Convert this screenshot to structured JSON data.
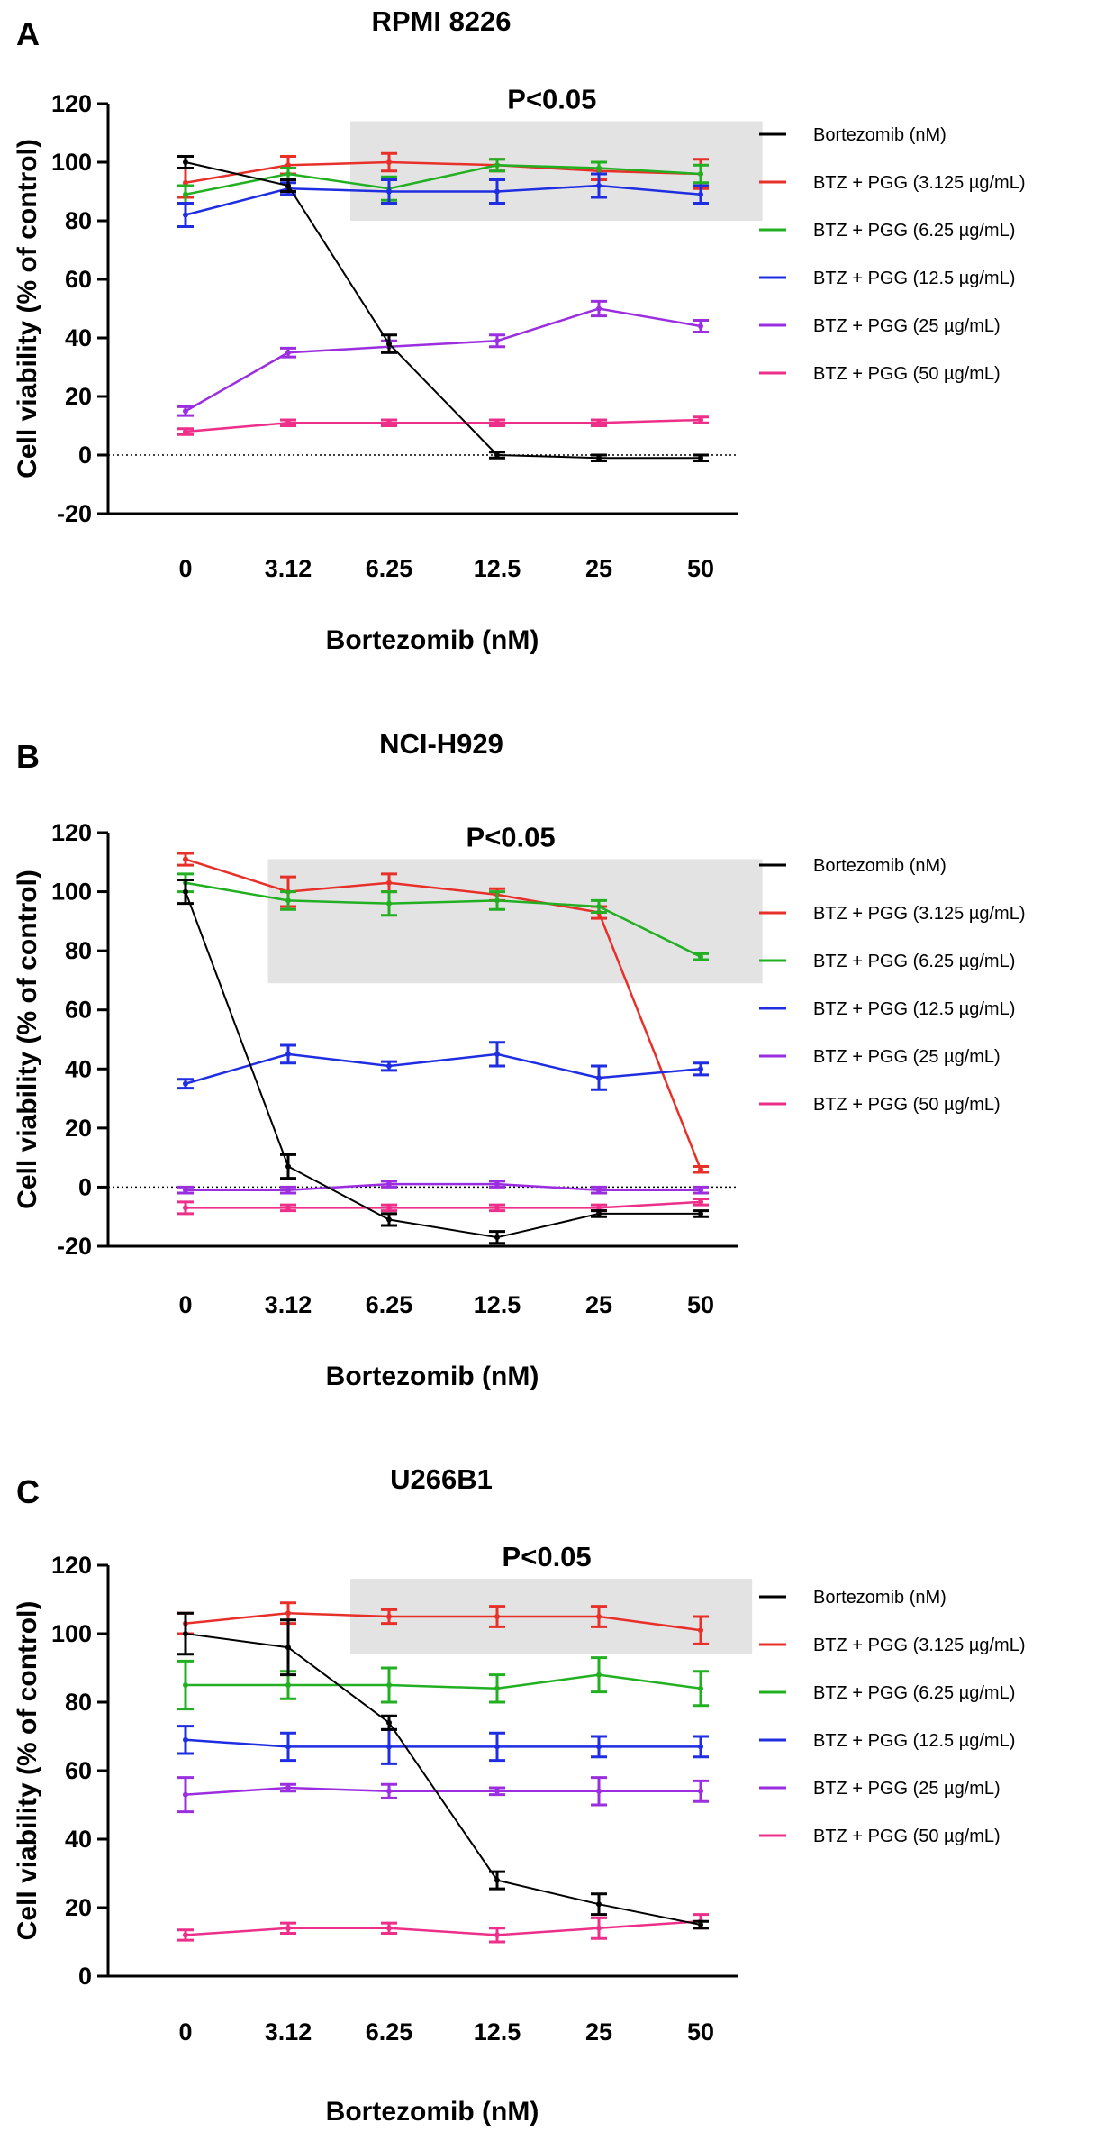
{
  "figure": {
    "panels": [
      {
        "letter": "A",
        "title": "RPMI 8226",
        "annotation": "P<0.05",
        "shade": {
          "x_from": 1.6,
          "x_to": 5.6,
          "y_from": 80,
          "y_to": 114
        }
      },
      {
        "letter": "B",
        "title": "NCI-H929",
        "annotation": "P<0.05",
        "shade": {
          "x_from": 0.8,
          "x_to": 5.6,
          "y_from": 69,
          "y_to": 111
        }
      },
      {
        "letter": "C",
        "title": "U266B1",
        "annotation": "P<0.05",
        "shade": {
          "x_from": 1.6,
          "x_to": 5.5,
          "y_from": 94,
          "y_to": 116
        }
      }
    ]
  },
  "colors": {
    "Bortezomib (nM)": "#000000",
    "BTZ + PGG (3.125 µg/mL)": "#e8302a",
    "BTZ + PGG (6.25 µg/mL)": "#22b022",
    "BTZ + PGG (12.5 µg/mL)": "#1f2ee0",
    "BTZ + PGG (25 µg/mL)": "#9b2fe0",
    "BTZ + PGG (50 µg/mL)": "#ee2f8a",
    "shade": "#e3e3e3"
  },
  "chart_data": [
    {
      "type": "line",
      "title": "RPMI 8226",
      "xlabel": "Bortezomib (nM)",
      "ylabel": "Cell viability (% of control)",
      "categories": [
        "0",
        "3.12",
        "6.25",
        "12.5",
        "25",
        "50"
      ],
      "ylim": [
        -20,
        120
      ],
      "yticks": [
        -20,
        0,
        20,
        40,
        60,
        80,
        100,
        120
      ],
      "zero_line": true,
      "series": [
        {
          "name": "Bortezomib (nM)",
          "values": [
            100,
            92,
            38,
            0,
            -1,
            -1
          ],
          "errors": [
            2,
            2,
            3,
            1,
            1,
            1
          ]
        },
        {
          "name": "BTZ + PGG (3.125 µg/mL)",
          "values": [
            93,
            99,
            100,
            99,
            97,
            96
          ],
          "errors": [
            5,
            3,
            3,
            2,
            3,
            5
          ]
        },
        {
          "name": "BTZ + PGG (6.25 µg/mL)",
          "values": [
            89,
            96,
            91,
            99,
            98,
            96
          ],
          "errors": [
            3,
            2,
            4,
            2,
            2,
            3
          ]
        },
        {
          "name": "BTZ + PGG (12.5 µg/mL)",
          "values": [
            82,
            91,
            90,
            90,
            92,
            89
          ],
          "errors": [
            4,
            2,
            4,
            4,
            4,
            3
          ]
        },
        {
          "name": "BTZ + PGG (25 µg/mL)",
          "values": [
            15,
            35,
            37,
            39,
            50,
            44
          ],
          "errors": [
            1.5,
            1.5,
            2,
            2,
            2.5,
            2
          ]
        },
        {
          "name": "BTZ + PGG (50 µg/mL)",
          "values": [
            8,
            11,
            11,
            11,
            11,
            12
          ],
          "errors": [
            1,
            1,
            1,
            1,
            1,
            1
          ]
        }
      ]
    },
    {
      "type": "line",
      "title": "NCI-H929",
      "xlabel": "Bortezomib (nM)",
      "ylabel": "Cell viability (% of control)",
      "categories": [
        "0",
        "3.12",
        "6.25",
        "12.5",
        "25",
        "50"
      ],
      "ylim": [
        -20,
        120
      ],
      "yticks": [
        -20,
        0,
        20,
        40,
        60,
        80,
        100,
        120
      ],
      "zero_line": true,
      "series": [
        {
          "name": "Bortezomib (nM)",
          "values": [
            100,
            7,
            -11,
            -17,
            -9,
            -9
          ],
          "errors": [
            4,
            4,
            2,
            2,
            1,
            1
          ]
        },
        {
          "name": "BTZ + PGG (3.125 µg/mL)",
          "values": [
            111,
            100,
            103,
            99,
            93,
            6
          ],
          "errors": [
            2,
            5,
            3,
            2,
            2,
            1
          ]
        },
        {
          "name": "BTZ + PGG (6.25 µg/mL)",
          "values": [
            103,
            97,
            96,
            97,
            95,
            78
          ],
          "errors": [
            3,
            3,
            4,
            3,
            2,
            1
          ]
        },
        {
          "name": "BTZ + PGG (12.5 µg/mL)",
          "values": [
            35,
            45,
            41,
            45,
            37,
            40
          ],
          "errors": [
            1.5,
            3,
            1.5,
            4,
            4,
            2
          ]
        },
        {
          "name": "BTZ + PGG (25 µg/mL)",
          "values": [
            -1,
            -1,
            1,
            1,
            -1,
            -1
          ],
          "errors": [
            1,
            1,
            1,
            1,
            1,
            1
          ]
        },
        {
          "name": "BTZ + PGG (50 µg/mL)",
          "values": [
            -7,
            -7,
            -7,
            -7,
            -7,
            -5
          ],
          "errors": [
            2,
            1,
            1,
            1,
            1,
            1
          ]
        }
      ]
    },
    {
      "type": "line",
      "title": "U266B1",
      "xlabel": "Bortezomib (nM)",
      "ylabel": "Cell viability (% of control)",
      "categories": [
        "0",
        "3.12",
        "6.25",
        "12.5",
        "25",
        "50"
      ],
      "ylim": [
        0,
        120
      ],
      "yticks": [
        0,
        20,
        40,
        60,
        80,
        100,
        120
      ],
      "zero_line": false,
      "series": [
        {
          "name": "Bortezomib (nM)",
          "values": [
            100,
            96,
            74,
            28,
            21,
            15
          ],
          "errors": [
            6,
            8,
            2,
            2.5,
            3,
            1
          ]
        },
        {
          "name": "BTZ + PGG (3.125 µg/mL)",
          "values": [
            103,
            106,
            105,
            105,
            105,
            101
          ],
          "errors": [
            3,
            3,
            2,
            3,
            3,
            4
          ]
        },
        {
          "name": "BTZ + PGG (6.25 µg/mL)",
          "values": [
            85,
            85,
            85,
            84,
            88,
            84
          ],
          "errors": [
            7,
            4,
            5,
            4,
            5,
            5
          ]
        },
        {
          "name": "BTZ + PGG (12.5 µg/mL)",
          "values": [
            69,
            67,
            67,
            67,
            67,
            67
          ],
          "errors": [
            4,
            4,
            5,
            4,
            3,
            3
          ]
        },
        {
          "name": "BTZ + PGG (25 µg/mL)",
          "values": [
            53,
            55,
            54,
            54,
            54,
            54
          ],
          "errors": [
            5,
            1,
            2,
            1,
            4,
            3
          ]
        },
        {
          "name": "BTZ + PGG (50 µg/mL)",
          "values": [
            12,
            14,
            14,
            12,
            14,
            16
          ],
          "errors": [
            1.5,
            1.5,
            1.5,
            2,
            3,
            2
          ]
        }
      ]
    }
  ]
}
